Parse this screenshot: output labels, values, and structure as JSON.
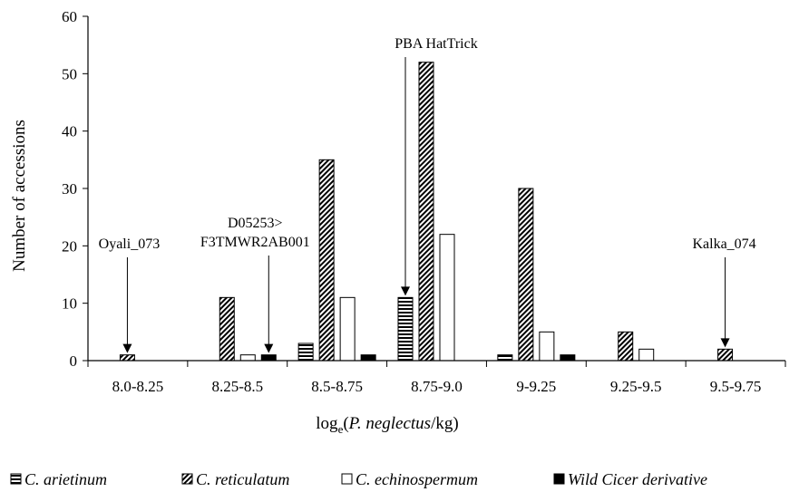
{
  "chart_data": {
    "type": "bar",
    "title": "",
    "ylabel": "Number of accessions",
    "xlabel": {
      "prefix": "log",
      "subscript": "e",
      "open": "(",
      "italic": "P. neglectus",
      "suffix": "/kg)"
    },
    "ylim": [
      0,
      60
    ],
    "yticks": [
      "0",
      "10",
      "20",
      "30",
      "40",
      "50",
      "60"
    ],
    "categories": [
      "8.0-8.25",
      "8.25-8.5",
      "8.5-8.75",
      "8.75-9.0",
      "9-9.25",
      "9.25-9.5",
      "9.5-9.75"
    ],
    "series": [
      {
        "name": "C. arietinum",
        "pattern": "horizontal-stripes",
        "values": [
          0,
          0,
          3,
          11,
          1,
          0,
          0
        ]
      },
      {
        "name": "C. reticulatum",
        "pattern": "diagonal-hatch",
        "values": [
          1,
          11,
          35,
          52,
          30,
          5,
          2
        ]
      },
      {
        "name": "C. echinospermum",
        "pattern": "white",
        "values": [
          0,
          1,
          11,
          22,
          5,
          2,
          0
        ]
      },
      {
        "name": "Wild Cicer derivative",
        "pattern": "black",
        "values": [
          0,
          1,
          1,
          0,
          1,
          0,
          0
        ]
      }
    ],
    "annotations": [
      {
        "lines": [
          "Oyali_073"
        ],
        "category": "8.0-8.25",
        "series": 1
      },
      {
        "lines": [
          "D05253>",
          "F3TMWR2AB001"
        ],
        "category": "8.25-8.5",
        "series": 3
      },
      {
        "lines": [
          "PBA HatTrick"
        ],
        "category": "8.75-9.0",
        "series": 0
      },
      {
        "lines": [
          "Kalka_074"
        ],
        "category": "9.5-9.75",
        "series": 1
      }
    ],
    "legend_position": "bottom",
    "grid": false
  }
}
